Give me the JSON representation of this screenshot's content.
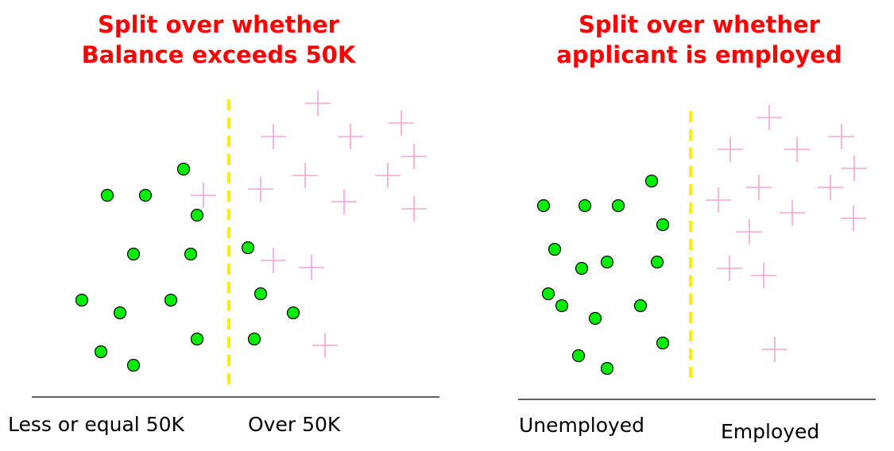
{
  "colors": {
    "title": "#ff0000",
    "dot_fill": "#00ee00",
    "dot_stroke": "#000000",
    "plus": "#f4a6d0",
    "split_line": "#ffee00",
    "axis": "#000000"
  },
  "icons": {
    "dot": "filled-circle",
    "plus": "plus-sign"
  },
  "panels": [
    {
      "title_line1": "Split over whether",
      "title_line2": "Balance exceeds 50K",
      "left_label": "Less or equal 50K",
      "right_label": "Over 50K"
    },
    {
      "title_line1": "Split over whether",
      "title_line2": "applicant is employed",
      "left_label": "Unemployed",
      "right_label": "Employed"
    }
  ]
}
